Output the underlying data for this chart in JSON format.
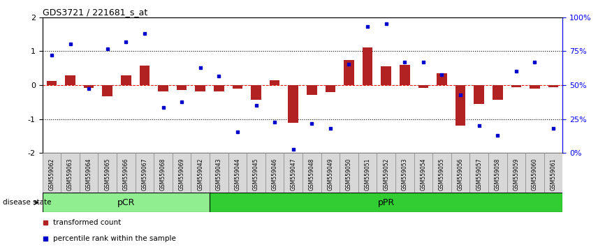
{
  "title": "GDS3721 / 221681_s_at",
  "samples": [
    "GSM559062",
    "GSM559063",
    "GSM559064",
    "GSM559065",
    "GSM559066",
    "GSM559067",
    "GSM559068",
    "GSM559069",
    "GSM559042",
    "GSM559043",
    "GSM559044",
    "GSM559045",
    "GSM559046",
    "GSM559047",
    "GSM559048",
    "GSM559049",
    "GSM559050",
    "GSM559051",
    "GSM559052",
    "GSM559053",
    "GSM559054",
    "GSM559055",
    "GSM559056",
    "GSM559057",
    "GSM559058",
    "GSM559059",
    "GSM559060",
    "GSM559061"
  ],
  "red_bars": [
    0.13,
    0.3,
    -0.08,
    -0.32,
    0.3,
    0.58,
    -0.18,
    -0.15,
    -0.18,
    -0.18,
    -0.1,
    -0.42,
    0.15,
    -1.1,
    -0.28,
    -0.2,
    0.75,
    1.12,
    0.55,
    0.6,
    -0.08,
    0.35,
    -1.18,
    -0.55,
    -0.42,
    -0.05,
    -0.1,
    -0.05
  ],
  "blue_dots": [
    0.88,
    1.22,
    -0.1,
    1.08,
    1.28,
    1.52,
    -0.65,
    -0.5,
    0.52,
    0.28,
    -1.38,
    -0.6,
    -1.08,
    -1.88,
    -1.12,
    -1.28,
    0.62,
    1.72,
    1.82,
    0.68,
    0.68,
    0.32,
    -0.28,
    -1.18,
    -1.48,
    0.42,
    0.68,
    -1.28
  ],
  "pCR_count": 9,
  "pPR_count": 19,
  "bar_color": "#b22222",
  "dot_color": "#0000cd",
  "ylim": [
    -2,
    2
  ],
  "left_yticks": [
    -2,
    -1,
    0,
    1,
    2
  ],
  "right_yticklabels": [
    "0%",
    "25%",
    "50%",
    "75%",
    "100%"
  ],
  "right_ytick_positions": [
    -2,
    -1,
    0,
    1,
    2
  ],
  "pCR_color": "#90EE90",
  "pPR_color": "#32CD32",
  "label_bar": "transformed count",
  "label_dot": "percentile rank within the sample",
  "bg_tick_color": "#aaaaaa"
}
